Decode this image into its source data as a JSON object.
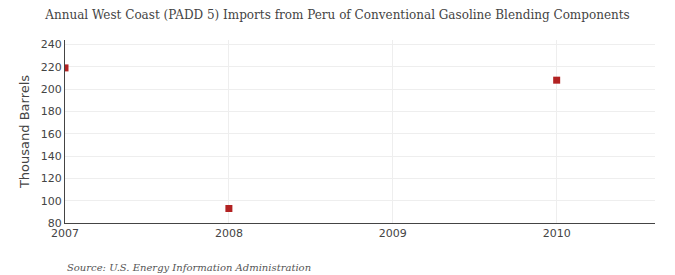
{
  "chart_data": {
    "type": "scatter",
    "title": "Annual West Coast (PADD 5) Imports from Peru of Conventional Gasoline Blending Components",
    "ylabel": "Thousand Barrels",
    "annotations": [
      "Source: U.S. Energy Information Administration"
    ],
    "x": [
      2007,
      2008,
      2010
    ],
    "values": [
      219,
      93,
      208
    ],
    "color": "#b22222",
    "marker": "square",
    "xlim": [
      2007,
      2010.6
    ],
    "xticks": [
      2007,
      2008,
      2009,
      2010
    ],
    "ylim": [
      80,
      244
    ],
    "yticks": [
      80,
      100,
      120,
      140,
      160,
      180,
      200,
      220,
      240
    ],
    "grid": true
  }
}
